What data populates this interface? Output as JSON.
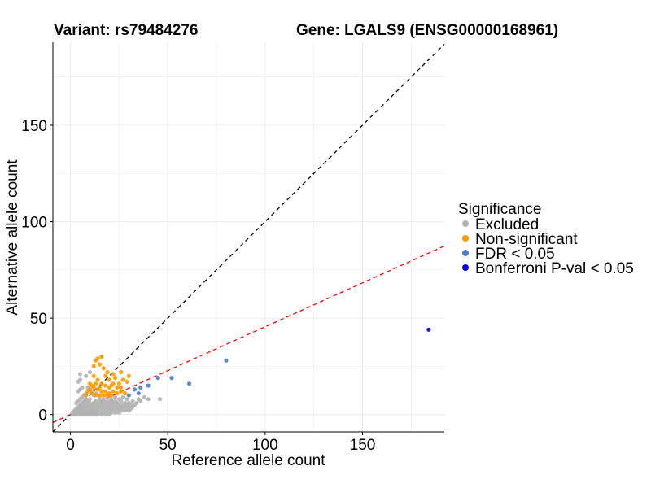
{
  "chart_data": {
    "type": "scatter",
    "title_left": "Variant: rs79484276",
    "title_right": "Gene: LGALS9 (ENSG00000168961)",
    "xlabel": "Reference allele count",
    "ylabel": "Alternative allele count",
    "xlim": [
      -9,
      192
    ],
    "ylim": [
      -9,
      193
    ],
    "xticks": [
      0,
      50,
      100,
      150
    ],
    "yticks": [
      0,
      50,
      100,
      150
    ],
    "grid": true,
    "reference_lines": [
      {
        "name": "identity",
        "slope": 1,
        "intercept": 0,
        "color": "#000000",
        "dash": "dashed"
      },
      {
        "name": "expected-ratio",
        "slope": 0.455,
        "intercept": 0,
        "color": "#ff0000",
        "dash": "dashed"
      }
    ],
    "legend": {
      "title": "Significance",
      "position": "right",
      "entries": [
        {
          "label": "Excluded",
          "color": "#b3b3b3"
        },
        {
          "label": "Non-significant",
          "color": "#ff9900"
        },
        {
          "label": "FDR < 0.05",
          "color": "#4a7fc1"
        },
        {
          "label": "Bonferroni P-val < 0.05",
          "color": "#0000ee"
        }
      ]
    },
    "series": [
      {
        "name": "Excluded",
        "color": "#b3b3b3",
        "points": [
          [
            1,
            0
          ],
          [
            1,
            1
          ],
          [
            2,
            0
          ],
          [
            2,
            1
          ],
          [
            2,
            2
          ],
          [
            3,
            0
          ],
          [
            3,
            1
          ],
          [
            3,
            2
          ],
          [
            3,
            3
          ],
          [
            4,
            0
          ],
          [
            4,
            1
          ],
          [
            4,
            2
          ],
          [
            4,
            3
          ],
          [
            4,
            4
          ],
          [
            5,
            0
          ],
          [
            5,
            1
          ],
          [
            5,
            2
          ],
          [
            5,
            3
          ],
          [
            5,
            5
          ],
          [
            6,
            0
          ],
          [
            6,
            1
          ],
          [
            6,
            2
          ],
          [
            6,
            4
          ],
          [
            6,
            6
          ],
          [
            7,
            0
          ],
          [
            7,
            1
          ],
          [
            7,
            3
          ],
          [
            7,
            5
          ],
          [
            7,
            7
          ],
          [
            8,
            0
          ],
          [
            8,
            1
          ],
          [
            8,
            2
          ],
          [
            8,
            4
          ],
          [
            8,
            6
          ],
          [
            8,
            8
          ],
          [
            9,
            0
          ],
          [
            9,
            1
          ],
          [
            9,
            3
          ],
          [
            9,
            5
          ],
          [
            9,
            7
          ],
          [
            10,
            0
          ],
          [
            10,
            1
          ],
          [
            10,
            2
          ],
          [
            10,
            4
          ],
          [
            10,
            6
          ],
          [
            10,
            8
          ],
          [
            11,
            0
          ],
          [
            11,
            2
          ],
          [
            11,
            3
          ],
          [
            11,
            5
          ],
          [
            12,
            0
          ],
          [
            12,
            1
          ],
          [
            12,
            2
          ],
          [
            12,
            4
          ],
          [
            12,
            6
          ],
          [
            13,
            0
          ],
          [
            13,
            1
          ],
          [
            13,
            3
          ],
          [
            13,
            5
          ],
          [
            14,
            0
          ],
          [
            14,
            2
          ],
          [
            14,
            4
          ],
          [
            14,
            6
          ],
          [
            15,
            1
          ],
          [
            15,
            3
          ],
          [
            15,
            5
          ],
          [
            16,
            0
          ],
          [
            16,
            2
          ],
          [
            16,
            4
          ],
          [
            16,
            6
          ],
          [
            17,
            1
          ],
          [
            17,
            3
          ],
          [
            17,
            5
          ],
          [
            18,
            0
          ],
          [
            18,
            2
          ],
          [
            18,
            4
          ],
          [
            18,
            6
          ],
          [
            19,
            1
          ],
          [
            19,
            3
          ],
          [
            19,
            5
          ],
          [
            20,
            0
          ],
          [
            20,
            2
          ],
          [
            20,
            4
          ],
          [
            20,
            6
          ],
          [
            21,
            1
          ],
          [
            21,
            3
          ],
          [
            21,
            5
          ],
          [
            22,
            2
          ],
          [
            22,
            4
          ],
          [
            22,
            6
          ],
          [
            23,
            1
          ],
          [
            23,
            3
          ],
          [
            23,
            5
          ],
          [
            24,
            2
          ],
          [
            24,
            4
          ],
          [
            24,
            6
          ],
          [
            25,
            1
          ],
          [
            25,
            3
          ],
          [
            25,
            5
          ],
          [
            26,
            2
          ],
          [
            26,
            4
          ],
          [
            26,
            7
          ],
          [
            27,
            3
          ],
          [
            27,
            5
          ],
          [
            28,
            2
          ],
          [
            28,
            4
          ],
          [
            28,
            6
          ],
          [
            29,
            3
          ],
          [
            29,
            5
          ],
          [
            30,
            2
          ],
          [
            30,
            4
          ],
          [
            30,
            6
          ],
          [
            31,
            3
          ],
          [
            31,
            5
          ],
          [
            32,
            4
          ],
          [
            32,
            7
          ],
          [
            33,
            5
          ],
          [
            34,
            6
          ],
          [
            35,
            8
          ],
          [
            36,
            7
          ],
          [
            38,
            9
          ],
          [
            40,
            8
          ],
          [
            46,
            8
          ],
          [
            3,
            6
          ],
          [
            4,
            7
          ],
          [
            5,
            8
          ],
          [
            6,
            9
          ],
          [
            7,
            10
          ],
          [
            8,
            11
          ],
          [
            4,
            12
          ],
          [
            5,
            13
          ],
          [
            6,
            14
          ],
          [
            4,
            17
          ],
          [
            5,
            18
          ],
          [
            5,
            21
          ],
          [
            8,
            20
          ],
          [
            9,
            14
          ],
          [
            10,
            22
          ],
          [
            11,
            12
          ],
          [
            12,
            10
          ],
          [
            13,
            11
          ],
          [
            15,
            9
          ],
          [
            17,
            8
          ],
          [
            19,
            9
          ],
          [
            21,
            8
          ],
          [
            23,
            9
          ],
          [
            25,
            8
          ],
          [
            27,
            9
          ],
          [
            29,
            8
          ],
          [
            6,
            5
          ],
          [
            7,
            4
          ],
          [
            9,
            2
          ],
          [
            11,
            4
          ],
          [
            13,
            7
          ],
          [
            15,
            7
          ],
          [
            17,
            7
          ],
          [
            19,
            7
          ],
          [
            21,
            7
          ],
          [
            23,
            7
          ]
        ]
      },
      {
        "name": "Non-significant",
        "color": "#ff9900",
        "points": [
          [
            14,
            29
          ],
          [
            13,
            28
          ],
          [
            16,
            30
          ],
          [
            12,
            25
          ],
          [
            15,
            26
          ],
          [
            17,
            24
          ],
          [
            19,
            22
          ],
          [
            22,
            21
          ],
          [
            26,
            22
          ],
          [
            18,
            20
          ],
          [
            20,
            18
          ],
          [
            23,
            19
          ],
          [
            27,
            18
          ],
          [
            30,
            20
          ],
          [
            29,
            17
          ],
          [
            25,
            16
          ],
          [
            12,
            20
          ],
          [
            14,
            18
          ],
          [
            16,
            16
          ],
          [
            18,
            15
          ],
          [
            21,
            15
          ],
          [
            24,
            14
          ],
          [
            10,
            16
          ],
          [
            12,
            14
          ],
          [
            14,
            13
          ],
          [
            16,
            12
          ],
          [
            18,
            12
          ],
          [
            20,
            11
          ],
          [
            22,
            12
          ],
          [
            24,
            11
          ],
          [
            26,
            12
          ],
          [
            28,
            11
          ],
          [
            11,
            11
          ],
          [
            13,
            10
          ],
          [
            15,
            10
          ],
          [
            17,
            10
          ],
          [
            19,
            10
          ],
          [
            21,
            10
          ],
          [
            9,
            12
          ],
          [
            10,
            13
          ],
          [
            8,
            10
          ],
          [
            11,
            15
          ],
          [
            13,
            16
          ],
          [
            15,
            14
          ],
          [
            20,
            14
          ],
          [
            22,
            16
          ],
          [
            26,
            14
          ]
        ]
      },
      {
        "name": "FDR < 0.05",
        "color": "#4a7fc1",
        "points": [
          [
            80,
            28
          ],
          [
            61,
            16
          ],
          [
            52,
            19
          ],
          [
            45,
            19
          ],
          [
            40,
            15
          ],
          [
            36,
            14
          ],
          [
            33,
            13
          ],
          [
            35,
            11
          ],
          [
            30,
            10
          ]
        ]
      },
      {
        "name": "Bonferroni P-val < 0.05",
        "color": "#0000ee",
        "points": [
          [
            184,
            44
          ]
        ]
      }
    ]
  }
}
